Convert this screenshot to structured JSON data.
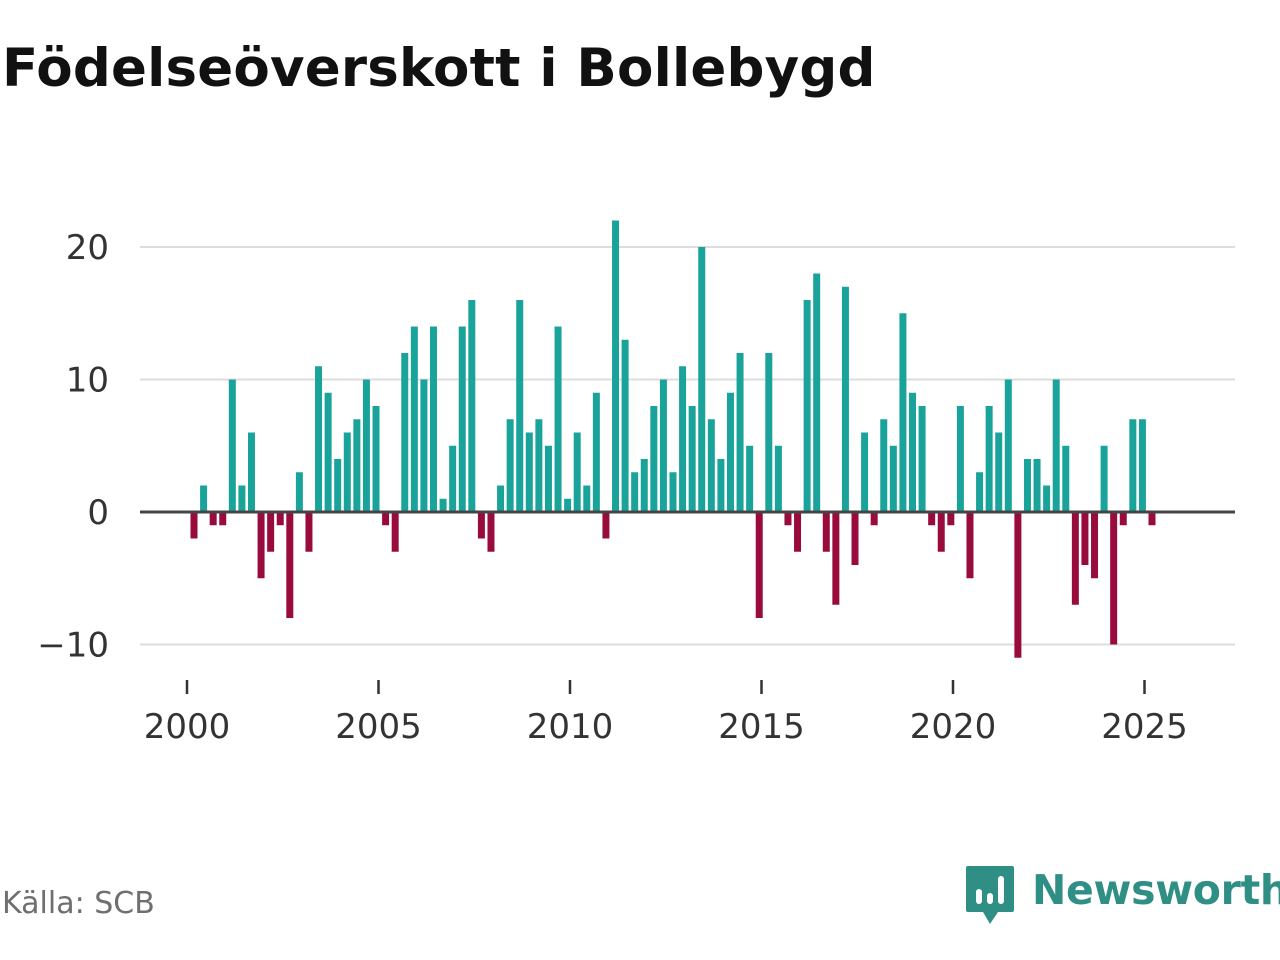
{
  "chart_data": {
    "type": "bar",
    "title": "Födelseöverskott i Bollebygd",
    "xlabel": "",
    "ylabel": "",
    "x_ticks": [
      "2000",
      "2005",
      "2010",
      "2015",
      "2020",
      "2025"
    ],
    "y_ticks": [
      "20",
      "10",
      "0",
      "−10"
    ],
    "y_tick_values": [
      20,
      10,
      0,
      -10
    ],
    "ylim": [
      -12,
      22
    ],
    "grid": true,
    "start_year": 2000,
    "start_quarter": 1,
    "period": "quarterly",
    "positive_color": "#1aa39a",
    "negative_color": "#9a0b3d",
    "values": [
      -2,
      2,
      -1,
      -1,
      10,
      2,
      6,
      -5,
      -3,
      -1,
      -8,
      3,
      -3,
      11,
      9,
      4,
      6,
      7,
      10,
      8,
      -1,
      -3,
      12,
      14,
      10,
      14,
      1,
      5,
      14,
      16,
      -2,
      -3,
      2,
      7,
      16,
      6,
      7,
      5,
      14,
      1,
      6,
      2,
      9,
      -2,
      22,
      13,
      3,
      4,
      8,
      10,
      3,
      11,
      8,
      20,
      7,
      4,
      9,
      12,
      5,
      -8,
      12,
      5,
      -1,
      -3,
      16,
      18,
      -3,
      -7,
      17,
      -4,
      6,
      -1,
      7,
      5,
      15,
      9,
      8,
      -1,
      -3,
      -1,
      8,
      -5,
      3,
      8,
      6,
      10,
      -11,
      4,
      4,
      2,
      10,
      5,
      -7,
      -4,
      -5,
      5,
      -10,
      -1,
      7,
      7,
      -1
    ]
  },
  "footer": {
    "source": "Källa: SCB",
    "brand": "Newsworthy"
  },
  "colors": {
    "brand": "#2f8f84",
    "gridline": "#dddddd",
    "zero_line": "#444444"
  }
}
